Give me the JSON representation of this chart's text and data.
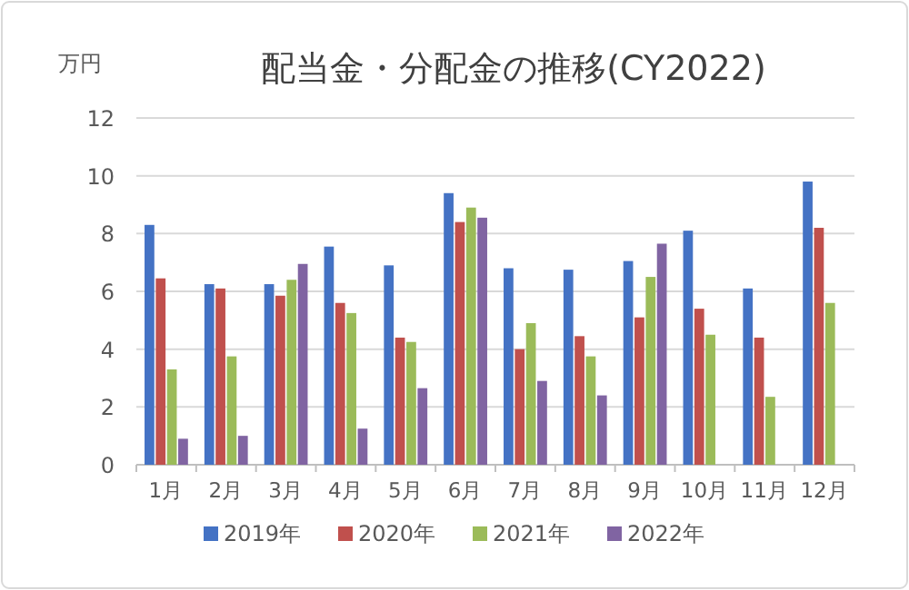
{
  "chart_data": {
    "type": "bar",
    "title": "配当金・分配金の推移(CY2022)",
    "ylabel": "万円",
    "categories": [
      "1月",
      "2月",
      "3月",
      "4月",
      "5月",
      "6月",
      "7月",
      "8月",
      "9月",
      "10月",
      "11月",
      "12月"
    ],
    "series": [
      {
        "name": "2019年",
        "color": "#4472c4",
        "values": [
          8.3,
          6.25,
          6.25,
          7.55,
          6.9,
          9.4,
          6.8,
          6.75,
          7.05,
          8.1,
          6.1,
          9.8
        ]
      },
      {
        "name": "2020年",
        "color": "#c0504d",
        "values": [
          6.45,
          6.1,
          5.85,
          5.6,
          4.4,
          8.4,
          4.0,
          4.45,
          5.1,
          5.4,
          4.4,
          8.2
        ]
      },
      {
        "name": "2021年",
        "color": "#9bbb59",
        "values": [
          3.3,
          3.75,
          6.4,
          5.25,
          4.25,
          8.9,
          4.9,
          3.75,
          6.5,
          4.5,
          2.35,
          5.6
        ]
      },
      {
        "name": "2022年",
        "color": "#8064a2",
        "values": [
          0.9,
          1.0,
          6.95,
          1.25,
          2.65,
          8.55,
          2.9,
          2.4,
          7.65,
          null,
          null,
          null
        ]
      }
    ],
    "ylim": [
      0,
      12
    ],
    "yticks": [
      0,
      2,
      4,
      6,
      8,
      10,
      12
    ],
    "grid": "y",
    "legend": "bottom"
  }
}
